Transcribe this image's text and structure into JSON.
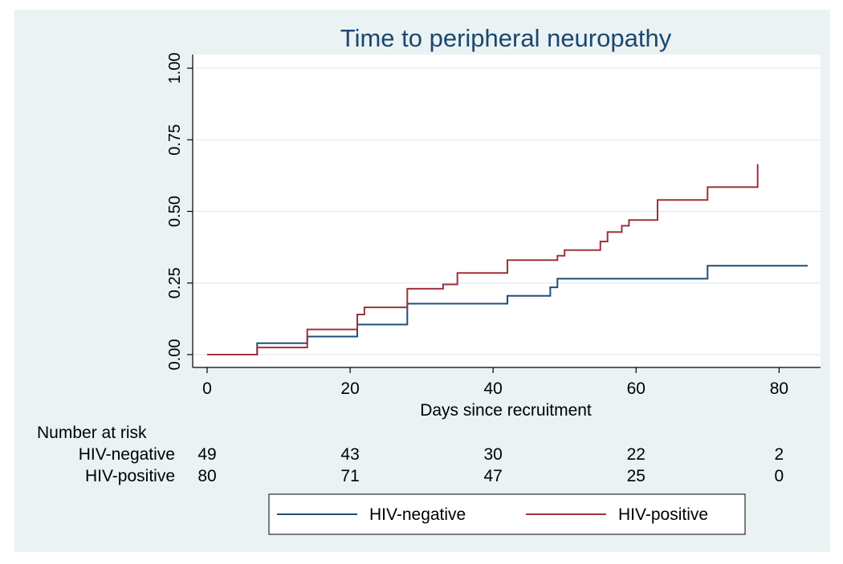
{
  "chart_data": {
    "type": "line",
    "title": "Time to peripheral neuropathy",
    "xlabel": "Days since recruitment",
    "ylabel": "",
    "xlim": [
      0,
      84
    ],
    "ylim": [
      0,
      1
    ],
    "xticks": [
      0,
      20,
      40,
      60,
      80
    ],
    "xtick_labels": [
      "0",
      "20",
      "40",
      "60",
      "80"
    ],
    "yticks": [
      0,
      0.25,
      0.5,
      0.75,
      1
    ],
    "ytick_labels": [
      "0.00",
      "0.25",
      "0.50",
      "0.75",
      "1.00"
    ],
    "grid": true,
    "step": true,
    "series": [
      {
        "name": "HIV-negative",
        "color": "#1f4e79",
        "points": [
          [
            0,
            0
          ],
          [
            7,
            0
          ],
          [
            7,
            0.04
          ],
          [
            14,
            0.04
          ],
          [
            14,
            0.063
          ],
          [
            21,
            0.063
          ],
          [
            21,
            0.105
          ],
          [
            28,
            0.105
          ],
          [
            28,
            0.178
          ],
          [
            42,
            0.178
          ],
          [
            42,
            0.205
          ],
          [
            48,
            0.205
          ],
          [
            48,
            0.235
          ],
          [
            49,
            0.235
          ],
          [
            49,
            0.265
          ],
          [
            70,
            0.265
          ],
          [
            70,
            0.31
          ],
          [
            84,
            0.31
          ]
        ]
      },
      {
        "name": "HIV-positive",
        "color": "#a0303a",
        "points": [
          [
            0,
            0
          ],
          [
            7,
            0
          ],
          [
            7,
            0.025
          ],
          [
            14,
            0.025
          ],
          [
            14,
            0.088
          ],
          [
            21,
            0.088
          ],
          [
            21,
            0.14
          ],
          [
            22,
            0.14
          ],
          [
            22,
            0.165
          ],
          [
            28,
            0.165
          ],
          [
            28,
            0.23
          ],
          [
            33,
            0.23
          ],
          [
            33,
            0.245
          ],
          [
            35,
            0.245
          ],
          [
            35,
            0.285
          ],
          [
            42,
            0.285
          ],
          [
            42,
            0.33
          ],
          [
            49,
            0.33
          ],
          [
            49,
            0.345
          ],
          [
            50,
            0.345
          ],
          [
            50,
            0.365
          ],
          [
            55,
            0.365
          ],
          [
            55,
            0.395
          ],
          [
            56,
            0.395
          ],
          [
            56,
            0.428
          ],
          [
            58,
            0.428
          ],
          [
            58,
            0.45
          ],
          [
            59,
            0.45
          ],
          [
            59,
            0.47
          ],
          [
            63,
            0.47
          ],
          [
            63,
            0.54
          ],
          [
            70,
            0.54
          ],
          [
            70,
            0.585
          ],
          [
            77,
            0.585
          ],
          [
            77,
            0.665
          ]
        ]
      }
    ],
    "risk_table": {
      "heading": "Number at risk",
      "days": [
        0,
        20,
        40,
        60,
        80
      ],
      "rows": [
        {
          "label": "HIV-negative",
          "values": [
            "49",
            "43",
            "30",
            "22",
            "2"
          ]
        },
        {
          "label": "HIV-positive",
          "values": [
            "80",
            "71",
            "47",
            "25",
            "0"
          ]
        }
      ]
    },
    "legend": {
      "position": "bottom",
      "entries": [
        "HIV-negative",
        "HIV-positive"
      ]
    }
  }
}
